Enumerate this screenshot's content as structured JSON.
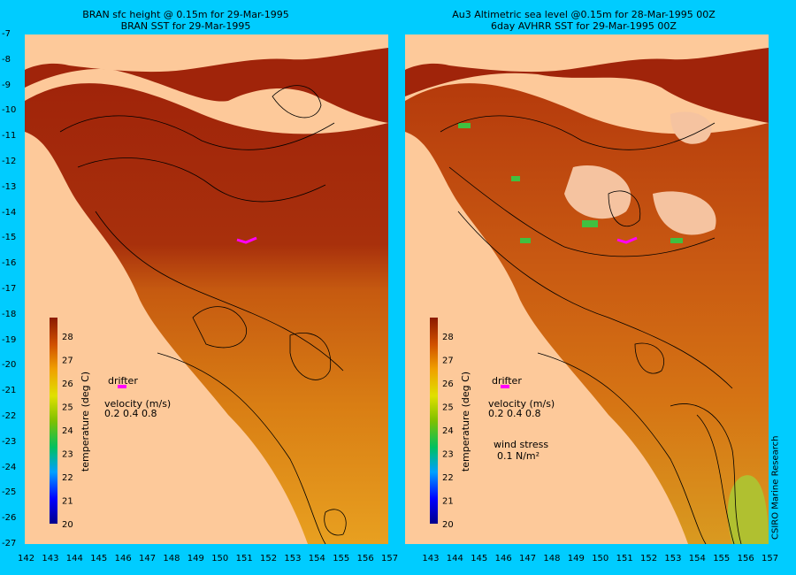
{
  "left": {
    "title_line1": "BRAN sfc height @ 0.15m for 29-Mar-1995",
    "title_line2": "BRAN SST for 29-Mar-1995",
    "legend": {
      "drifter": "drifter",
      "velocity_label": "velocity (m/s)",
      "velocity_values": "0.2 0.4 0.8"
    }
  },
  "right": {
    "title_line1": "Au3 Altimetric sea level  @0.15m  for 28-Mar-1995 00Z",
    "title_line2": "6day AVHRR SST for 29-Mar-1995 00Z",
    "legend": {
      "drifter": "drifter",
      "velocity_label": "velocity (m/s)",
      "velocity_values": "0.2 0.4 0.8",
      "wind_stress_label": "wind stress",
      "wind_stress_value": "0.1 N/m²"
    }
  },
  "colorbar": {
    "label": "temperature (deg C)",
    "ticks": [
      "20",
      "21",
      "22",
      "23",
      "24",
      "25",
      "26",
      "27",
      "28"
    ],
    "min": 20,
    "max": 28.8
  },
  "axes": {
    "x_ticks": [
      "142",
      "143",
      "144",
      "145",
      "146",
      "147",
      "148",
      "149",
      "150",
      "151",
      "152",
      "153",
      "154",
      "155",
      "156",
      "157"
    ],
    "y_ticks": [
      "-7",
      "-8",
      "-9",
      "-10",
      "-11",
      "-12",
      "-13",
      "-14",
      "-15",
      "-16",
      "-17",
      "-18",
      "-19",
      "-20",
      "-21",
      "-22",
      "-23",
      "-24",
      "-25",
      "-26",
      "-27"
    ],
    "lon_range": [
      142,
      157
    ],
    "lat_range": [
      -27,
      -7
    ]
  },
  "credit": "CSIRO Marine Research",
  "colors": {
    "background": "#00ccff",
    "land": "#fdc99a",
    "warm": "#a52a0a",
    "drifter": "#ff00ff"
  }
}
